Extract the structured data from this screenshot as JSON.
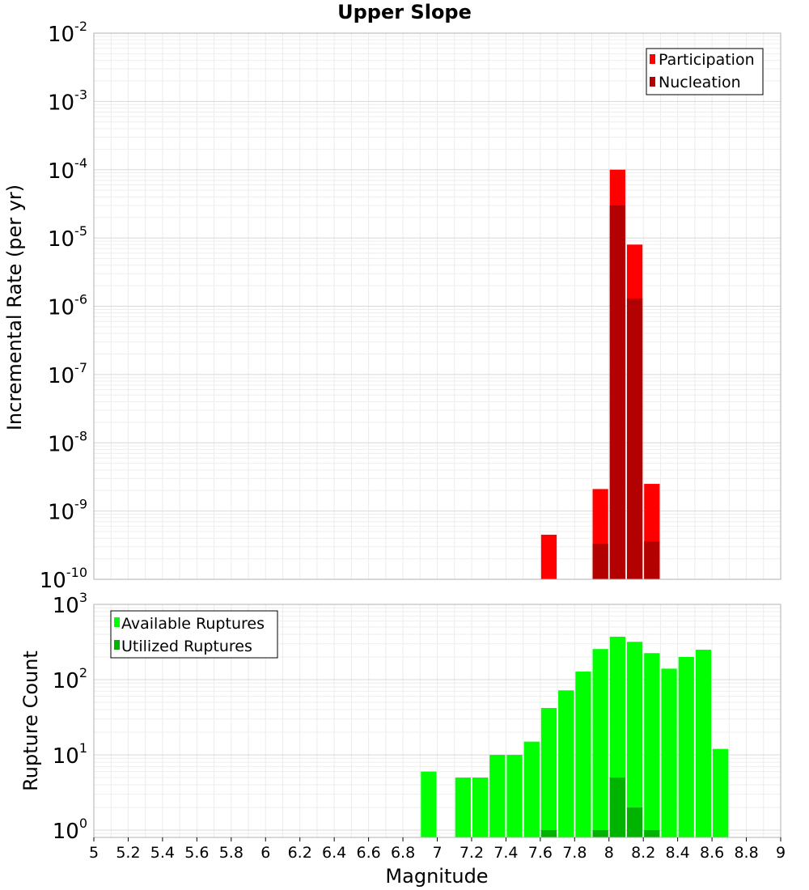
{
  "chart_data": [
    {
      "type": "bar",
      "title": "Upper Slope",
      "xlabel": "",
      "ylabel": "Incremental Rate (per yr)",
      "y_scale": "log",
      "ylim": [
        1e-10,
        0.01
      ],
      "xlim": [
        5,
        9
      ],
      "y_tick_labels": [
        {
          "base": "10",
          "exp": "-10"
        },
        {
          "base": "10",
          "exp": "-9"
        },
        {
          "base": "10",
          "exp": "-8"
        },
        {
          "base": "10",
          "exp": "-7"
        },
        {
          "base": "10",
          "exp": "-6"
        },
        {
          "base": "10",
          "exp": "-5"
        },
        {
          "base": "10",
          "exp": "-4"
        },
        {
          "base": "10",
          "exp": "-3"
        },
        {
          "base": "10",
          "exp": "-2"
        }
      ],
      "bin_width": 0.1,
      "grid": true,
      "legend_position": "top-right",
      "series": [
        {
          "name": "Participation",
          "color": "#ff0000",
          "x": [
            7.65,
            7.95,
            8.05,
            8.15,
            8.25
          ],
          "values": [
            4.5e-10,
            2.1e-09,
            0.0001,
            8e-06,
            2.5e-09
          ]
        },
        {
          "name": "Nucleation",
          "color": "#b30000",
          "x": [
            7.95,
            8.05,
            8.15,
            8.25
          ],
          "values": [
            3.3e-10,
            3e-05,
            1.3e-06,
            3.6e-10
          ]
        }
      ]
    },
    {
      "type": "bar",
      "title": "",
      "xlabel": "Magnitude",
      "ylabel": "Rupture Count",
      "y_scale": "log",
      "ylim": [
        0.8,
        1000
      ],
      "xlim": [
        5,
        9
      ],
      "x_ticks": [
        "5",
        "5.2",
        "5.4",
        "5.6",
        "5.8",
        "6",
        "6.2",
        "6.4",
        "6.6",
        "6.8",
        "7",
        "7.2",
        "7.4",
        "7.6",
        "7.8",
        "8",
        "8.2",
        "8.4",
        "8.6",
        "8.8",
        "9"
      ],
      "y_tick_labels": [
        {
          "base": "10",
          "exp": "0"
        },
        {
          "base": "10",
          "exp": "1"
        },
        {
          "base": "10",
          "exp": "2"
        },
        {
          "base": "10",
          "exp": "3"
        }
      ],
      "bin_width": 0.1,
      "grid": true,
      "legend_position": "top-left",
      "series": [
        {
          "name": "Available Ruptures",
          "color": "#00ff00",
          "x": [
            6.95,
            7.15,
            7.25,
            7.35,
            7.45,
            7.55,
            7.65,
            7.75,
            7.85,
            7.95,
            8.05,
            8.15,
            8.25,
            8.35,
            8.45,
            8.55,
            8.65
          ],
          "values": [
            6,
            5,
            5,
            10,
            10,
            15,
            42,
            72,
            128,
            255,
            372,
            318,
            225,
            140,
            200,
            250,
            12
          ]
        },
        {
          "name": "Utilized Ruptures",
          "color": "#00b300",
          "x": [
            7.65,
            7.95,
            8.05,
            8.15,
            8.25
          ],
          "values": [
            1,
            1,
            5,
            2,
            1
          ]
        }
      ]
    }
  ]
}
